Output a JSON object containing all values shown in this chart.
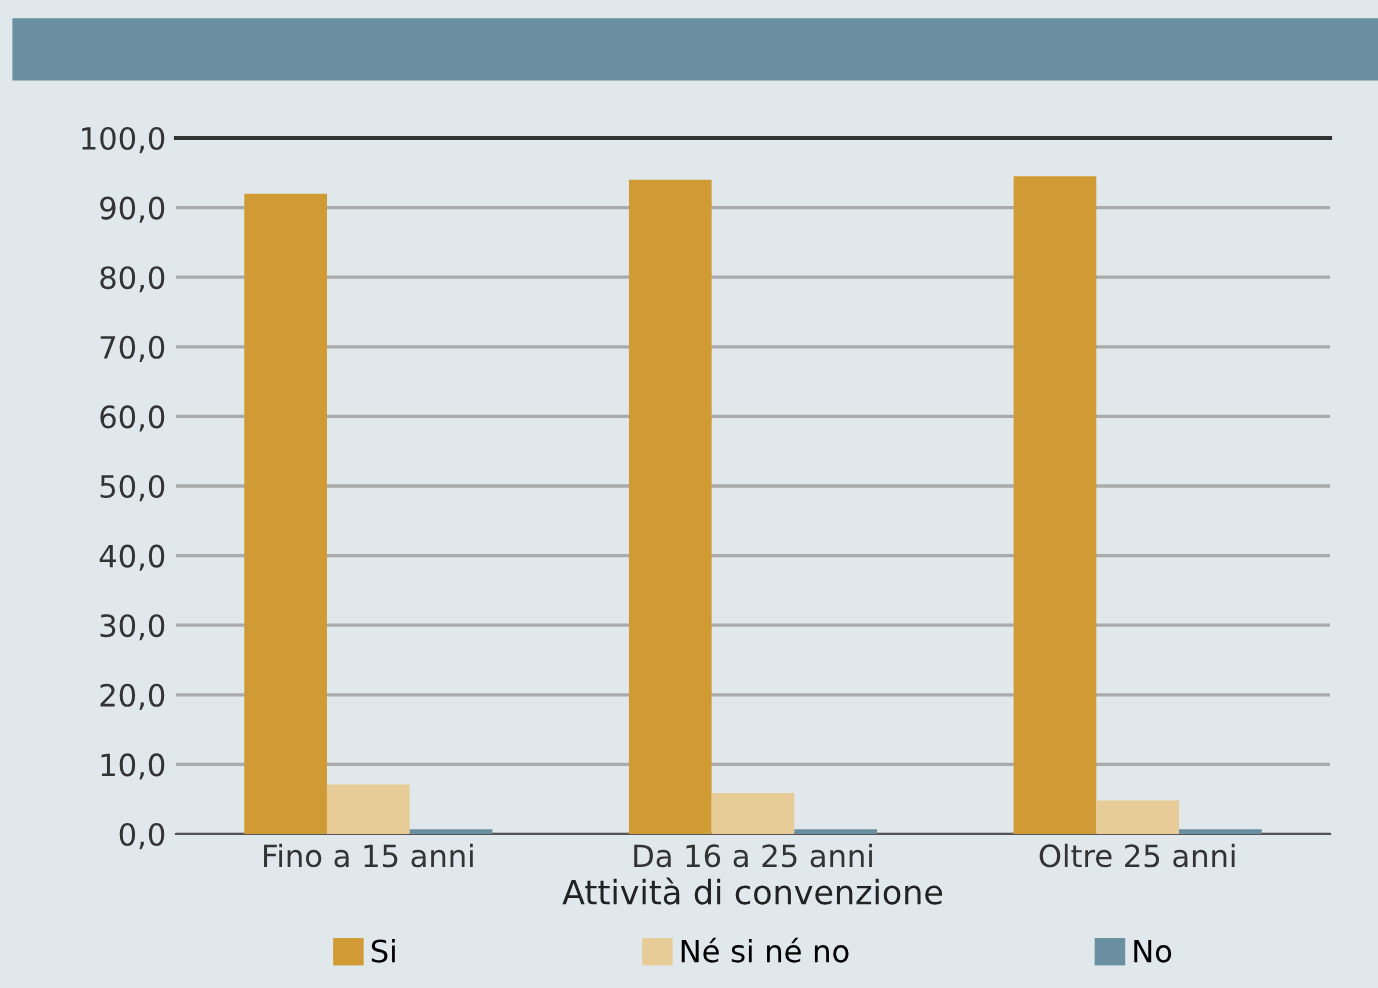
{
  "chart_data": {
    "type": "bar",
    "xlabel": "Attività di convenzione",
    "categories": [
      "Fino a 15 anni",
      "Da 16 a 25 anni",
      "Oltre 25 anni"
    ],
    "series": [
      {
        "name": "Si",
        "color": "#d09b35",
        "values": [
          92.0,
          94.0,
          94.5
        ]
      },
      {
        "name": "Né si né no",
        "color": "#e8cc98",
        "values": [
          7.1,
          5.9,
          4.8
        ]
      },
      {
        "name": "No",
        "color": "#6a8fa0",
        "values": [
          0.7,
          0.7,
          0.7
        ]
      }
    ],
    "ylim": [
      0,
      100
    ],
    "yticks": [
      {
        "value": 0,
        "label": "0,0"
      },
      {
        "value": 10,
        "label": "10,0"
      },
      {
        "value": 20,
        "label": "20,0"
      },
      {
        "value": 30,
        "label": "30,0"
      },
      {
        "value": 40,
        "label": "40,0"
      },
      {
        "value": 50,
        "label": "50,0"
      },
      {
        "value": 60,
        "label": "60,0"
      },
      {
        "value": 70,
        "label": "70,0"
      },
      {
        "value": 80,
        "label": "80,0"
      },
      {
        "value": 90,
        "label": "90,0"
      },
      {
        "value": 100,
        "label": "100,0"
      }
    ],
    "grid": "y",
    "legend": "bottom"
  }
}
